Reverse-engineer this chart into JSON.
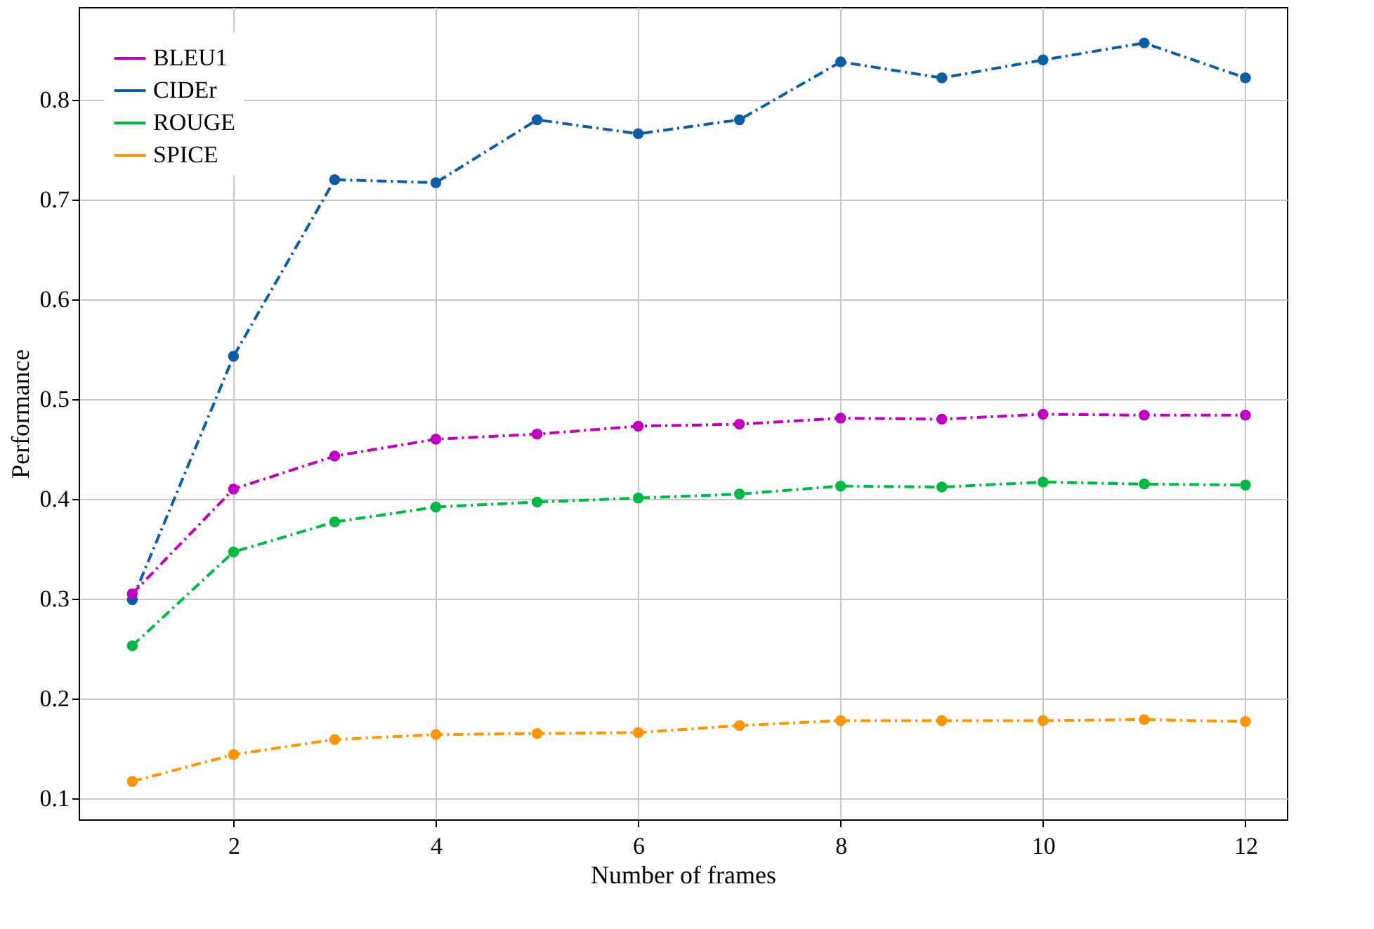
{
  "chart_data": {
    "type": "line",
    "xlabel": "Number of frames",
    "ylabel": "Performance",
    "x": [
      1,
      2,
      3,
      4,
      5,
      6,
      7,
      8,
      9,
      10,
      11,
      12
    ],
    "series": [
      {
        "name": "BLEU1",
        "color": "#c000c0",
        "values": [
          0.305,
          0.41,
          0.443,
          0.46,
          0.465,
          0.473,
          0.475,
          0.481,
          0.48,
          0.485,
          0.484,
          0.484
        ]
      },
      {
        "name": "CIDEr",
        "color": "#0c5da5",
        "values": [
          0.299,
          0.543,
          0.72,
          0.717,
          0.78,
          0.766,
          0.78,
          0.838,
          0.822,
          0.84,
          0.857,
          0.822
        ]
      },
      {
        "name": "ROUGE",
        "color": "#00b945",
        "values": [
          0.253,
          0.347,
          0.377,
          0.392,
          0.397,
          0.401,
          0.405,
          0.413,
          0.412,
          0.417,
          0.415,
          0.414
        ]
      },
      {
        "name": "SPICE",
        "color": "#ff9500",
        "values": [
          0.117,
          0.144,
          0.159,
          0.164,
          0.165,
          0.166,
          0.173,
          0.178,
          0.178,
          0.178,
          0.179,
          0.177
        ]
      }
    ],
    "xlim": [
      0.47,
      12.41
    ],
    "xticks": [
      2,
      4,
      6,
      8,
      10,
      12
    ],
    "ylim": [
      0.079,
      0.893
    ],
    "yticks": [
      0.1,
      0.2,
      0.3,
      0.4,
      0.5,
      0.6,
      0.7,
      0.8
    ],
    "grid": true,
    "legend": "top left",
    "marker": "circle",
    "line_style": "dashdot"
  }
}
